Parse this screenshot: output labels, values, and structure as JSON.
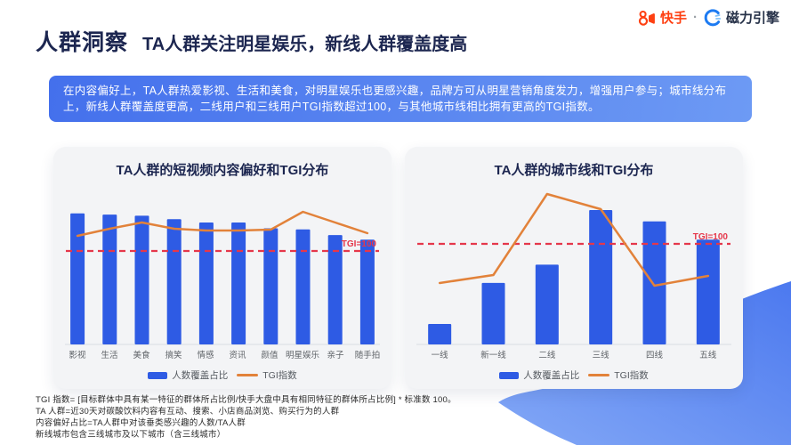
{
  "header": {
    "section_label": "人群洞察",
    "title": "TA人群关注明星娱乐，新线人群覆盖度高"
  },
  "brand": {
    "kuaishou_label": "快手",
    "separator": "·",
    "engine_label": "磁力引擎"
  },
  "summary": {
    "text": "在内容偏好上，TA人群热爱影视、生活和美食，对明星娱乐也更感兴趣，品牌方可从明星营销角度发力，增强用户参与；城市线分布上，新线人群覆盖度更高，二线用户和三线用户TGI指数超过100，与其他城市线相比拥有更高的TGI指数。"
  },
  "chart_data": [
    {
      "type": "bar",
      "title": "TA人群的短视频内容偏好和TGI分布",
      "categories": [
        "影视",
        "生活",
        "美食",
        "搞笑",
        "情感",
        "资讯",
        "颜值",
        "明星娱乐",
        "亲子",
        "随手拍"
      ],
      "series": [
        {
          "name": "人数覆盖占比",
          "type": "bar",
          "values": [
            57.5,
            57,
            56.5,
            55,
            53.5,
            53.5,
            51,
            50.5,
            48,
            46
          ]
        },
        {
          "name": "TGI指数",
          "type": "line",
          "values": [
            117,
            125,
            132,
            125,
            123,
            123,
            124,
            144,
            132,
            120
          ]
        }
      ],
      "reference_line": {
        "label": "TGI=100",
        "value": 100
      },
      "legend_position": "bottom",
      "y_axis_ticks_visible": false
    },
    {
      "type": "bar",
      "title": "TA人群的城市线和TGI分布",
      "categories": [
        "一线",
        "新一线",
        "二线",
        "三线",
        "四线",
        "五线"
      ],
      "series": [
        {
          "name": "人数覆盖占比",
          "type": "bar",
          "values": [
            9,
            27,
            35,
            59,
            54,
            46
          ]
        },
        {
          "name": "TGI指数",
          "type": "line",
          "values": [
            56,
            65,
            156,
            139,
            53,
            64
          ]
        }
      ],
      "reference_line": {
        "label": "TGI=100",
        "value": 100
      },
      "legend_position": "bottom",
      "y_axis_ticks_visible": false
    }
  ],
  "footnotes": [
    "TGI 指数= [目标群体中具有某一特征的群体所占比例/快手大盘中具有相同特征的群体所占比例] * 标准数 100。",
    "TA 人群=近30天对碳酸饮料内容有互动、搜索、小店商品浏览、购买行为的人群",
    "内容偏好占比=TA人群中对该垂类感兴趣的人数/TA人群",
    "新线城市包含三线城市及以下城市（含三线城市）"
  ],
  "colors": {
    "bar": "#2e5be4",
    "line": "#e2823a",
    "reference": "#e5374b",
    "title_navy": "#1c2650",
    "card_bg": "#f3f4f6",
    "summary_gradient": [
      "#4470ec",
      "#6d9af4"
    ],
    "ribbon_gradient": [
      "#4c79ef",
      "#83a8f6"
    ],
    "kuaishou_orange": "#fe4012",
    "engine_blue": "#1d7bf2",
    "axis_line": "#dde0e6"
  }
}
